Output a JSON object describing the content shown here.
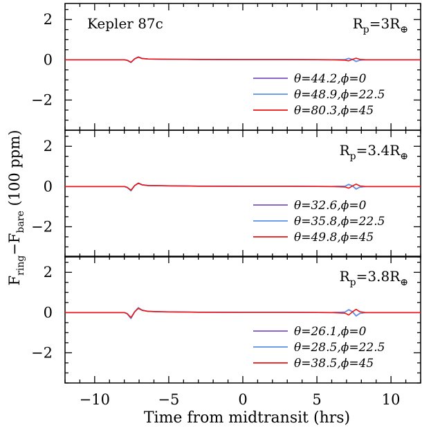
{
  "chart_data": {
    "type": "line",
    "xlabel": "Time from midtransit (hrs)",
    "ylabel": {
      "main": "F",
      "sub1": "ring",
      "minus": "−F",
      "sub2": "bare",
      "units": " (100 ppm)"
    },
    "xlim": [
      -12,
      12
    ],
    "ylim": [
      -3.5,
      2.8
    ],
    "xticks": [
      -10,
      -5,
      0,
      5,
      10
    ],
    "xtick_labels": [
      "−10",
      "−5",
      "0",
      "5",
      "10"
    ],
    "yticks": [
      -2,
      0,
      2
    ],
    "ytick_labels": [
      "−2",
      "0",
      "2"
    ],
    "colors": {
      "purple": "#7b4fc4",
      "blue": "#5b8fe8",
      "red": "#ee1111"
    },
    "panels": [
      {
        "object_label": "Kepler 87c",
        "radius": {
          "prefix": "R",
          "sub": "p",
          "value": "=3R",
          "earth": "⊕"
        },
        "series": [
          {
            "name": "θ=44.2,ϕ=0",
            "color": "#7b4fc4",
            "x": [
              -12,
              -8,
              -7.8,
              -7.55,
              -7.3,
              -7.05,
              -6.8,
              -6.4,
              -5.5,
              -3,
              0,
              3,
              6,
              6.9,
              7.15,
              7.4,
              7.65,
              7.9,
              8.3,
              12
            ],
            "y": [
              0,
              0,
              -0.03,
              -0.13,
              0.05,
              0.14,
              0.07,
              0.04,
              0.03,
              0.02,
              0.01,
              0.01,
              0,
              0.01,
              0.07,
              0.02,
              -0.08,
              -0.02,
              0,
              0
            ]
          },
          {
            "name": "θ=48.9,ϕ=22.5",
            "color": "#5b8fe8",
            "x": [
              -12,
              -8,
              -7.8,
              -7.55,
              -7.3,
              -7.05,
              -6.8,
              -6.4,
              -5.5,
              -3,
              0,
              3,
              6,
              6.9,
              7.15,
              7.4,
              7.65,
              7.9,
              8.3,
              12
            ],
            "y": [
              0,
              0,
              -0.03,
              -0.14,
              0.05,
              0.15,
              0.07,
              0.04,
              0.03,
              0.02,
              0.01,
              0.01,
              0,
              0.01,
              0.07,
              0.02,
              -0.09,
              -0.02,
              0,
              0
            ]
          },
          {
            "name": "θ=80.3,ϕ=45",
            "color": "#ee1111",
            "x": [
              -12,
              -8,
              -7.8,
              -7.55,
              -7.3,
              -7.05,
              -6.8,
              -6.4,
              -5.5,
              -3,
              0,
              3,
              6,
              6.9,
              7.15,
              7.4,
              7.65,
              7.9,
              8.3,
              12
            ],
            "y": [
              0,
              0,
              -0.02,
              -0.12,
              0.05,
              0.13,
              0.06,
              0.04,
              0.03,
              0.02,
              0.01,
              0.01,
              0,
              -0.02,
              -0.05,
              0.02,
              0.08,
              0.02,
              0,
              0
            ]
          }
        ]
      },
      {
        "object_label": "",
        "radius": {
          "prefix": "R",
          "sub": "p",
          "value": "=3.4R",
          "earth": "⊕"
        },
        "series": [
          {
            "name": "θ=32.6,ϕ=0",
            "color": "#7b4fc4",
            "x": [
              -12,
              -8,
              -7.8,
              -7.55,
              -7.3,
              -7.05,
              -6.8,
              -6.4,
              -5.5,
              -3,
              0,
              3,
              6,
              6.9,
              7.15,
              7.4,
              7.65,
              7.9,
              8.3,
              12
            ],
            "y": [
              0,
              0,
              -0.05,
              -0.2,
              0.05,
              0.17,
              0.09,
              0.05,
              0.04,
              0.02,
              0.01,
              0.01,
              0,
              0.02,
              0.1,
              0.03,
              -0.12,
              -0.03,
              0,
              0
            ]
          },
          {
            "name": "θ=35.8,ϕ=22.5",
            "color": "#5b8fe8",
            "x": [
              -12,
              -8,
              -7.8,
              -7.55,
              -7.3,
              -7.05,
              -6.8,
              -6.4,
              -5.5,
              -3,
              0,
              3,
              6,
              6.9,
              7.15,
              7.4,
              7.65,
              7.9,
              8.3,
              12
            ],
            "y": [
              0,
              0,
              -0.05,
              -0.22,
              0.05,
              0.18,
              0.09,
              0.05,
              0.04,
              0.02,
              0.01,
              0.01,
              0,
              0.02,
              0.11,
              0.03,
              -0.13,
              -0.03,
              0,
              0
            ]
          },
          {
            "name": "θ=49.8,ϕ=45",
            "color": "#ee1111",
            "x": [
              -12,
              -8,
              -7.8,
              -7.55,
              -7.3,
              -7.05,
              -6.8,
              -6.4,
              -5.5,
              -3,
              0,
              3,
              6,
              6.9,
              7.15,
              7.4,
              7.65,
              7.9,
              8.3,
              12
            ],
            "y": [
              0,
              0,
              -0.04,
              -0.18,
              0.05,
              0.16,
              0.08,
              0.05,
              0.04,
              0.02,
              0.01,
              0.01,
              0,
              -0.02,
              -0.08,
              0.03,
              0.12,
              0.03,
              0,
              0
            ]
          }
        ]
      },
      {
        "object_label": "",
        "radius": {
          "prefix": "R",
          "sub": "p",
          "value": "=3.8R",
          "earth": "⊕"
        },
        "series": [
          {
            "name": "θ=26.1,ϕ=0",
            "color": "#7b4fc4",
            "x": [
              -12,
              -8,
              -7.8,
              -7.55,
              -7.3,
              -7.05,
              -6.8,
              -6.4,
              -5.5,
              -3,
              0,
              3,
              6,
              6.9,
              7.15,
              7.4,
              7.65,
              7.9,
              8.3,
              12
            ],
            "y": [
              0,
              0,
              -0.06,
              -0.28,
              0.04,
              0.23,
              0.12,
              0.06,
              0.04,
              0.02,
              0.01,
              0.01,
              0,
              0.03,
              0.14,
              0.04,
              -0.16,
              -0.04,
              0,
              0
            ]
          },
          {
            "name": "θ=28.5,ϕ=22.5",
            "color": "#5b8fe8",
            "x": [
              -12,
              -8,
              -7.8,
              -7.55,
              -7.3,
              -7.05,
              -6.8,
              -6.4,
              -5.5,
              -3,
              0,
              3,
              6,
              6.9,
              7.15,
              7.4,
              7.65,
              7.9,
              8.3,
              12
            ],
            "y": [
              0,
              0,
              -0.06,
              -0.3,
              0.04,
              0.25,
              0.12,
              0.06,
              0.04,
              0.02,
              0.01,
              0.01,
              0,
              0.03,
              0.15,
              0.04,
              -0.17,
              -0.04,
              0,
              0
            ]
          },
          {
            "name": "θ=38.5,ϕ=45",
            "color": "#ee1111",
            "x": [
              -12,
              -8,
              -7.8,
              -7.55,
              -7.3,
              -7.05,
              -6.8,
              -6.4,
              -5.5,
              -3,
              0,
              3,
              6,
              6.9,
              7.15,
              7.4,
              7.65,
              7.9,
              8.3,
              12
            ],
            "y": [
              0,
              0,
              -0.05,
              -0.25,
              0.04,
              0.21,
              0.11,
              0.06,
              0.04,
              0.02,
              0.01,
              0.01,
              0,
              -0.03,
              -0.12,
              0.04,
              0.16,
              0.04,
              0,
              0
            ]
          }
        ]
      }
    ],
    "grid": false,
    "legend_placement": "lower-right"
  }
}
